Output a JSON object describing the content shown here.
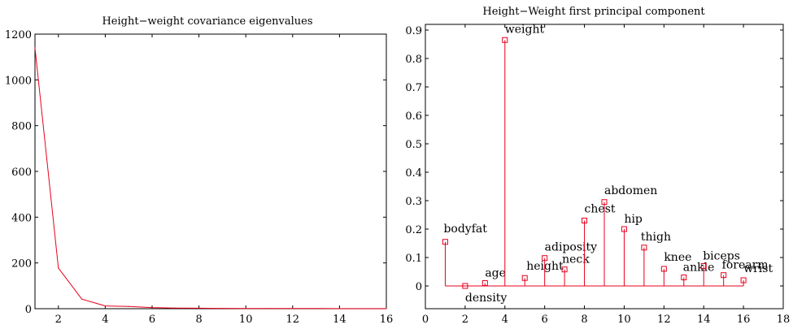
{
  "chart_data": [
    {
      "type": "line",
      "title": "Height−weight covariance eigenvalues",
      "xlim": [
        1,
        16
      ],
      "ylim": [
        0,
        1200
      ],
      "xticks": [
        2,
        4,
        6,
        8,
        10,
        12,
        14,
        16
      ],
      "yticks": [
        0,
        200,
        400,
        600,
        800,
        1000,
        1200
      ],
      "x": [
        1,
        2,
        3,
        4,
        5,
        6,
        7,
        8,
        9,
        10,
        11,
        12,
        13,
        14,
        15,
        16
      ],
      "values": [
        1140,
        178,
        42,
        12,
        10,
        5,
        3,
        2,
        1.5,
        1,
        1,
        0.8,
        0.6,
        0.5,
        0.3,
        0.2
      ],
      "color": "#e8001c"
    },
    {
      "type": "stem",
      "title": "Height−Weight first principal component",
      "xlim": [
        0,
        18
      ],
      "ylim": [
        -0.08,
        0.92
      ],
      "xticks": [
        0,
        2,
        4,
        6,
        8,
        10,
        12,
        14,
        16,
        18
      ],
      "yticks": [
        0,
        0.1,
        0.2,
        0.3,
        0.4,
        0.5,
        0.6,
        0.7,
        0.8,
        0.9
      ],
      "color": "#e8001c",
      "points": [
        {
          "x": 1,
          "y": 0.155,
          "label": "bodyfat"
        },
        {
          "x": 2,
          "y": 0.0,
          "label": "density"
        },
        {
          "x": 3,
          "y": 0.01,
          "label": "age"
        },
        {
          "x": 4,
          "y": 0.865,
          "label": "weight"
        },
        {
          "x": 5,
          "y": 0.028,
          "label": "height"
        },
        {
          "x": 6,
          "y": 0.098,
          "label": "adiposity"
        },
        {
          "x": 7,
          "y": 0.058,
          "label": "neck"
        },
        {
          "x": 8,
          "y": 0.23,
          "label": "chest"
        },
        {
          "x": 9,
          "y": 0.295,
          "label": "abdomen"
        },
        {
          "x": 10,
          "y": 0.2,
          "label": "hip"
        },
        {
          "x": 11,
          "y": 0.135,
          "label": "thigh"
        },
        {
          "x": 12,
          "y": 0.06,
          "label": "knee"
        },
        {
          "x": 13,
          "y": 0.03,
          "label": "ankle"
        },
        {
          "x": 14,
          "y": 0.07,
          "label": "biceps"
        },
        {
          "x": 15,
          "y": 0.038,
          "label": "forearm"
        },
        {
          "x": 16,
          "y": 0.02,
          "label": "wrist"
        }
      ]
    }
  ]
}
